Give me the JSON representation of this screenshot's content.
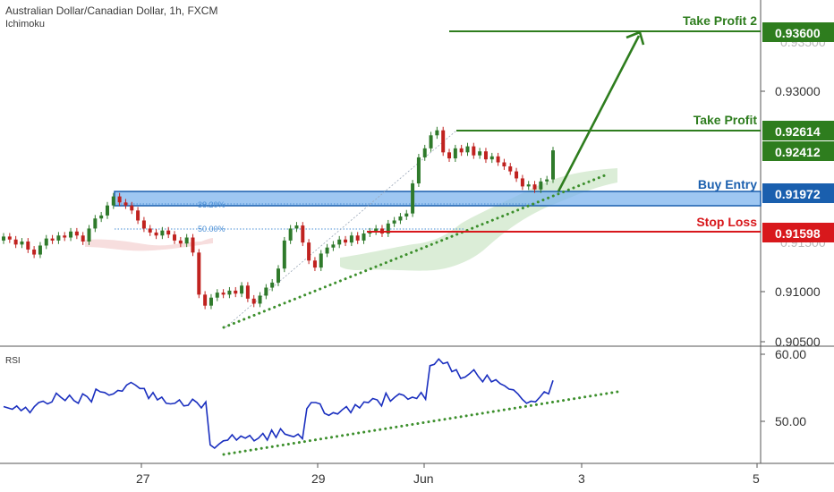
{
  "header": {
    "title": "Australian Dollar/Canadian Dollar, 1h, FXCM",
    "indicator": "Ichimoku"
  },
  "colors": {
    "up": "#2f7a2b",
    "down": "#c0221f",
    "take_profit": "#2e7d1e",
    "buy_entry": "#1a5fae",
    "stop_loss": "#d8181c",
    "rsi_line": "#1a2fbf",
    "trend": "#3c8f2c",
    "cloud": "#d9ecd5",
    "cloud_red": "#f6dada"
  },
  "chart_data": [
    {
      "type": "line",
      "title": "Australian Dollar/Canadian Dollar, 1h, FXCM",
      "indicator": "Ichimoku",
      "x_ticks": [
        "27",
        "29",
        "Jun",
        "3",
        "5"
      ],
      "y_ticks": [
        "0.93000",
        "0.91000",
        "0.90500"
      ],
      "ylim": [
        0.905,
        0.938
      ],
      "levels": [
        {
          "name": "Take Profit 2",
          "value": "0.93600",
          "color_key": "take_profit"
        },
        {
          "name": "Take Profit",
          "value": "0.92614",
          "color_key": "take_profit"
        },
        {
          "name": "",
          "value": "0.92412",
          "color_key": "take_profit"
        },
        {
          "name": "Buy Entry",
          "value": "0.91972",
          "color_key": "buy_entry"
        },
        {
          "name": "Stop Loss",
          "value": "0.91598",
          "color_key": "stop_loss"
        }
      ],
      "fib_labels": [
        "38.20%",
        "50.00%"
      ],
      "close_series": [
        0.9155,
        0.9152,
        0.9147,
        0.915,
        0.9142,
        0.9137,
        0.9146,
        0.9153,
        0.9151,
        0.9156,
        0.9154,
        0.916,
        0.9156,
        0.915,
        0.9163,
        0.9173,
        0.9176,
        0.9186,
        0.9195,
        0.9189,
        0.9186,
        0.9181,
        0.9171,
        0.9163,
        0.9159,
        0.9156,
        0.9161,
        0.9157,
        0.9151,
        0.9148,
        0.9154,
        0.9139,
        0.9097,
        0.9086,
        0.9094,
        0.9099,
        0.9097,
        0.9101,
        0.9098,
        0.9106,
        0.9093,
        0.9088,
        0.9096,
        0.9104,
        0.9109,
        0.9123,
        0.9151,
        0.9163,
        0.9166,
        0.9149,
        0.9131,
        0.9124,
        0.9138,
        0.9144,
        0.9147,
        0.9152,
        0.9149,
        0.9156,
        0.9151,
        0.9158,
        0.916,
        0.9163,
        0.9158,
        0.9168,
        0.9171,
        0.9175,
        0.9178,
        0.9208,
        0.9234,
        0.9243,
        0.9256,
        0.9261,
        0.9239,
        0.9233,
        0.9243,
        0.9239,
        0.9245,
        0.9236,
        0.924,
        0.9232,
        0.9235,
        0.9229,
        0.9225,
        0.922,
        0.9213,
        0.9205,
        0.9207,
        0.9202,
        0.921,
        0.9212,
        0.9241
      ]
    },
    {
      "type": "line",
      "title": "RSI",
      "y_ticks": [
        "60.00",
        "50.00"
      ],
      "ylim": [
        45,
        61
      ],
      "series": [
        {
          "values": [
            52.2,
            52.0,
            51.8,
            52.3,
            51.6,
            52.1,
            51.3,
            52.2,
            52.8,
            53.0,
            52.6,
            52.9,
            54.2,
            53.6,
            53.1,
            53.9,
            53.1,
            52.7,
            54.1,
            53.7,
            52.9,
            54.8,
            54.4,
            54.3,
            53.9,
            54.1,
            54.6,
            54.5,
            55.4,
            55.8,
            55.4,
            54.9,
            54.9,
            53.4,
            54.3,
            53.2,
            53.6,
            52.7,
            52.6,
            52.7,
            53.2,
            52.3,
            52.4,
            53.3,
            52.8,
            52.0,
            52.9,
            46.5,
            46.0,
            46.6,
            47.1,
            47.2,
            48.0,
            47.2,
            47.8,
            47.5,
            47.9,
            47.1,
            47.5,
            48.2,
            47.2,
            48.7,
            47.6,
            48.9,
            48.1,
            47.9,
            47.7,
            48.1,
            47.4,
            51.9,
            52.8,
            52.8,
            52.6,
            51.2,
            50.9,
            51.3,
            51.1,
            51.7,
            52.2,
            51.3,
            52.5,
            52.0,
            52.9,
            52.8,
            53.4,
            53.2,
            52.3,
            54.2,
            53.0,
            53.6,
            54.1,
            53.9,
            53.3,
            53.6,
            53.4,
            54.3,
            53.3,
            58.3,
            58.5,
            59.3,
            58.6,
            58.8,
            57.4,
            57.7,
            56.4,
            56.6,
            57.1,
            57.7,
            56.7,
            55.9,
            56.9,
            55.9,
            56.2,
            55.6,
            55.3,
            54.8,
            54.7,
            54.1,
            53.3,
            52.7,
            53.0,
            52.9,
            53.6,
            54.4,
            54.1,
            56.1
          ]
        }
      ]
    }
  ]
}
